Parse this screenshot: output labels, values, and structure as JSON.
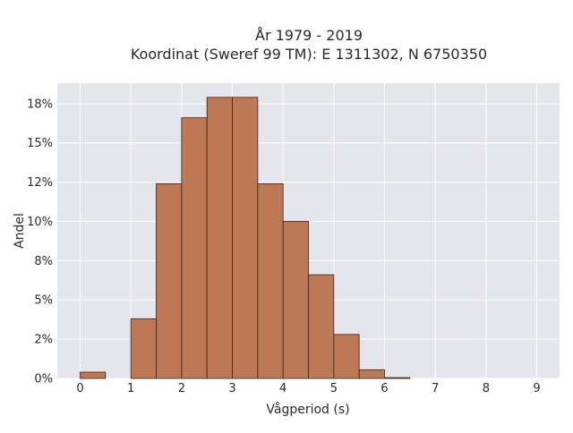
{
  "chart_data": {
    "type": "bar",
    "title_line1": "År 1979 - 2019",
    "title_line2": "Koordinat (Sweref 99 TM): E 1311302, N 6750350",
    "xlabel": "Vågperiod (s)",
    "ylabel": "Andel",
    "bin_width": 0.5,
    "bins": [
      {
        "start": 0.0,
        "value": 0.4
      },
      {
        "start": 0.5,
        "value": 0.0
      },
      {
        "start": 1.0,
        "value": 3.8
      },
      {
        "start": 1.5,
        "value": 12.4
      },
      {
        "start": 2.0,
        "value": 16.6
      },
      {
        "start": 2.5,
        "value": 17.9
      },
      {
        "start": 3.0,
        "value": 17.9
      },
      {
        "start": 3.5,
        "value": 12.4
      },
      {
        "start": 4.0,
        "value": 10.0
      },
      {
        "start": 4.5,
        "value": 6.6
      },
      {
        "start": 5.0,
        "value": 2.8
      },
      {
        "start": 5.5,
        "value": 0.55
      },
      {
        "start": 6.0,
        "value": 0.05
      }
    ],
    "xlim": [
      -0.45,
      9.45
    ],
    "ylim": [
      0,
      18.8
    ],
    "x_ticks": [
      {
        "value": 0,
        "label": "0"
      },
      {
        "value": 1,
        "label": "1"
      },
      {
        "value": 2,
        "label": "2"
      },
      {
        "value": 3,
        "label": "3"
      },
      {
        "value": 4,
        "label": "4"
      },
      {
        "value": 5,
        "label": "5"
      },
      {
        "value": 6,
        "label": "6"
      },
      {
        "value": 7,
        "label": "7"
      },
      {
        "value": 8,
        "label": "8"
      },
      {
        "value": 9,
        "label": "9"
      }
    ],
    "y_ticks": [
      {
        "value": 0,
        "label": "0%"
      },
      {
        "value": 2.5,
        "label": "2%"
      },
      {
        "value": 5,
        "label": "5%"
      },
      {
        "value": 7.5,
        "label": "8%"
      },
      {
        "value": 10,
        "label": "10%"
      },
      {
        "value": 12.5,
        "label": "12%"
      },
      {
        "value": 15,
        "label": "15%"
      },
      {
        "value": 17.5,
        "label": "18%"
      }
    ],
    "grid": true,
    "colors": {
      "plot_background": "#e5e5ee",
      "grid": "#ffffff",
      "bar_fill": "#bd7955",
      "bar_edge": "#3d2418"
    }
  }
}
